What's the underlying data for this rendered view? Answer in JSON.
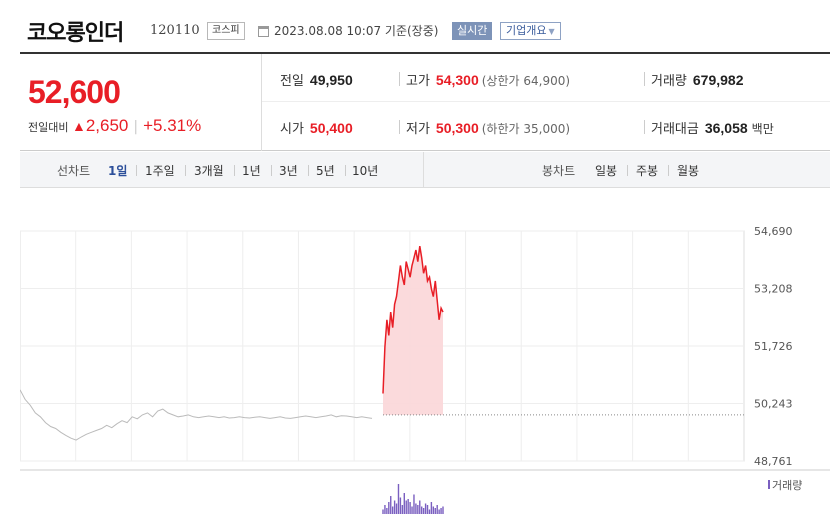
{
  "header": {
    "stock_name": "코오롱인더",
    "stock_code": "120110",
    "market": "코스피",
    "date": "2023.08.08 10:07  기준(장중)",
    "realtime_label": "실시간",
    "company_overview_label": "기업개요"
  },
  "quote": {
    "current_price": "52,600",
    "diff_label": "전일대비",
    "diff_arrow": "▲",
    "diff_value": "2,650",
    "diff_rate": "+5.31%",
    "prev_close_label": "전일",
    "prev_close": "49,950",
    "high_label": "고가",
    "high": "54,300",
    "upper_limit": "(상한가 64,900)",
    "volume_label": "거래량",
    "volume": "679,982",
    "open_label": "시가",
    "open": "50,400",
    "low_label": "저가",
    "low": "50,300",
    "lower_limit": "(하한가 35,000)",
    "trade_value_label": "거래대금",
    "trade_value": "36,058",
    "trade_value_unit": "백만"
  },
  "tabs": {
    "line_chart_label": "선차트",
    "periods": [
      "1일",
      "1주일",
      "3개월",
      "1년",
      "3년",
      "5년",
      "10년"
    ],
    "active_period": "1일",
    "candle_chart_label": "봉차트",
    "candle_periods": [
      "일봉",
      "주봉",
      "월봉"
    ]
  },
  "colors": {
    "up": "#e81e26",
    "accent": "#2c4f9a"
  },
  "chart_data": {
    "type": "line",
    "y_ticks": [
      "54,690",
      "53,208",
      "51,726",
      "50,243",
      "48,761"
    ],
    "ylim": [
      48761,
      54690
    ],
    "baseline": 49950,
    "volume_label": "거래량",
    "series": [
      {
        "values_prev_day": [
          50600,
          50350,
          50200,
          50000,
          49900,
          49750,
          49650,
          49600,
          49500,
          49420,
          49350,
          49300,
          49380,
          49450,
          49500,
          49550,
          49600,
          49680,
          49620,
          49720,
          49800,
          49750,
          49900,
          49850,
          49950,
          50000,
          49900,
          50050,
          50100,
          50000,
          49950,
          49900,
          49920,
          49950,
          49900,
          49880,
          49900,
          49920,
          49900,
          49880,
          49900,
          49870,
          49880,
          49900,
          49880,
          49870,
          49890,
          49900,
          49880,
          49860,
          49880,
          49900,
          49870,
          49860,
          49880,
          49900,
          49920,
          49900,
          49880,
          49900,
          49920,
          49950,
          49900,
          49930,
          49920,
          49900,
          49880,
          49900,
          49880,
          49860
        ]
      },
      {
        "values_today": [
          50500,
          51700,
          52400,
          52000,
          52600,
          52200,
          52800,
          53000,
          53400,
          53800,
          53500,
          53300,
          53900,
          53700,
          53500,
          53800,
          54000,
          54200,
          53900,
          54300,
          54000,
          53600,
          53800,
          53400,
          53500,
          53200,
          53000,
          53400,
          52900,
          52400,
          52700,
          52600
        ]
      }
    ],
    "volume_today": [
      3,
      6,
      4,
      8,
      12,
      5,
      9,
      7,
      20,
      11,
      6,
      14,
      9,
      10,
      8,
      5,
      13,
      7,
      6,
      9,
      5,
      4,
      7,
      6,
      3,
      8,
      5,
      4,
      6,
      3,
      4,
      5
    ]
  }
}
